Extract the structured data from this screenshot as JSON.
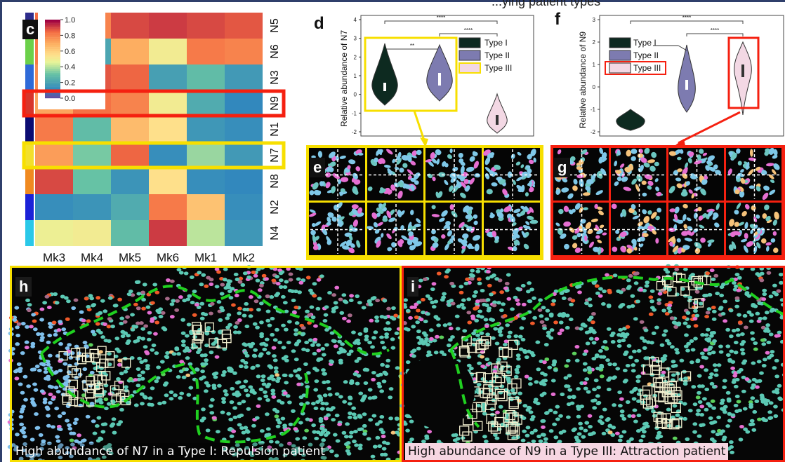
{
  "header_fragment": "...ying patient types",
  "panel_c": {
    "letter": "c",
    "columns": [
      "Mk3",
      "Mk4",
      "Mk5",
      "Mk6",
      "Mk1",
      "Mk2"
    ],
    "rows": [
      "N5",
      "N6",
      "N3",
      "N9",
      "N1",
      "N7",
      "N8",
      "N2",
      "N4"
    ],
    "colorbar_ticks": [
      "1.0",
      "0.8",
      "0.6",
      "0.4",
      "0.2",
      "0.0"
    ],
    "row_marker_colors": [
      "#2e2c8c",
      "#6bd04a",
      "#2f6ad8",
      "#d8352a",
      "#0c0c72",
      "#f2e02c",
      "#f08a20",
      "#1b22d8",
      "#2ac8e8"
    ],
    "values": [
      [
        0.85,
        0.8,
        0.9,
        0.92,
        0.9,
        0.88
      ],
      [
        0.82,
        0.2,
        0.7,
        0.5,
        0.82,
        0.8
      ],
      [
        0.78,
        0.88,
        0.86,
        0.18,
        0.28,
        0.16
      ],
      [
        0.72,
        0.84,
        0.8,
        0.5,
        0.22,
        0.1
      ],
      [
        0.82,
        0.28,
        0.66,
        0.55,
        0.15,
        0.12
      ],
      [
        0.74,
        0.32,
        0.86,
        0.12,
        0.36,
        0.16
      ],
      [
        0.9,
        0.3,
        0.14,
        0.55,
        0.12,
        0.1
      ],
      [
        0.12,
        0.14,
        0.22,
        0.82,
        0.64,
        0.12
      ],
      [
        0.48,
        0.5,
        0.28,
        0.92,
        0.4,
        0.15
      ]
    ]
  },
  "panel_d": {
    "letter": "d",
    "ylabel": "Relative abundance of N7",
    "legend": [
      "Type I",
      "Type II",
      "Type III"
    ],
    "yticks": [
      "4",
      "3",
      "2",
      "1",
      "0",
      "-1",
      "-2"
    ],
    "sig_top": "****",
    "sig_mid": "****",
    "sig_pair": "**"
  },
  "panel_f": {
    "letter": "f",
    "ylabel": "Relative abundance of N9",
    "legend": [
      "Type I",
      "Type II",
      "Type III"
    ],
    "yticks": [
      "3",
      "2",
      "1",
      "0",
      "-1",
      "-2"
    ],
    "sig_top": "****",
    "sig_mid": "****"
  },
  "panel_e": {
    "letter": "e"
  },
  "panel_g": {
    "letter": "g"
  },
  "panel_h": {
    "letter": "h",
    "caption": "High abundance of N7 in a Type I: Repulsion patient"
  },
  "panel_i": {
    "letter": "i",
    "caption": "High abundance of N9 in a Type III: Attraction patient"
  },
  "colors": {
    "type1": "#0d2a20",
    "type2": "#7d7bb0",
    "type3": "#f3d8e4",
    "yellow": "#f7df00",
    "red": "#f52010",
    "frame": "#2f3f6b"
  }
}
